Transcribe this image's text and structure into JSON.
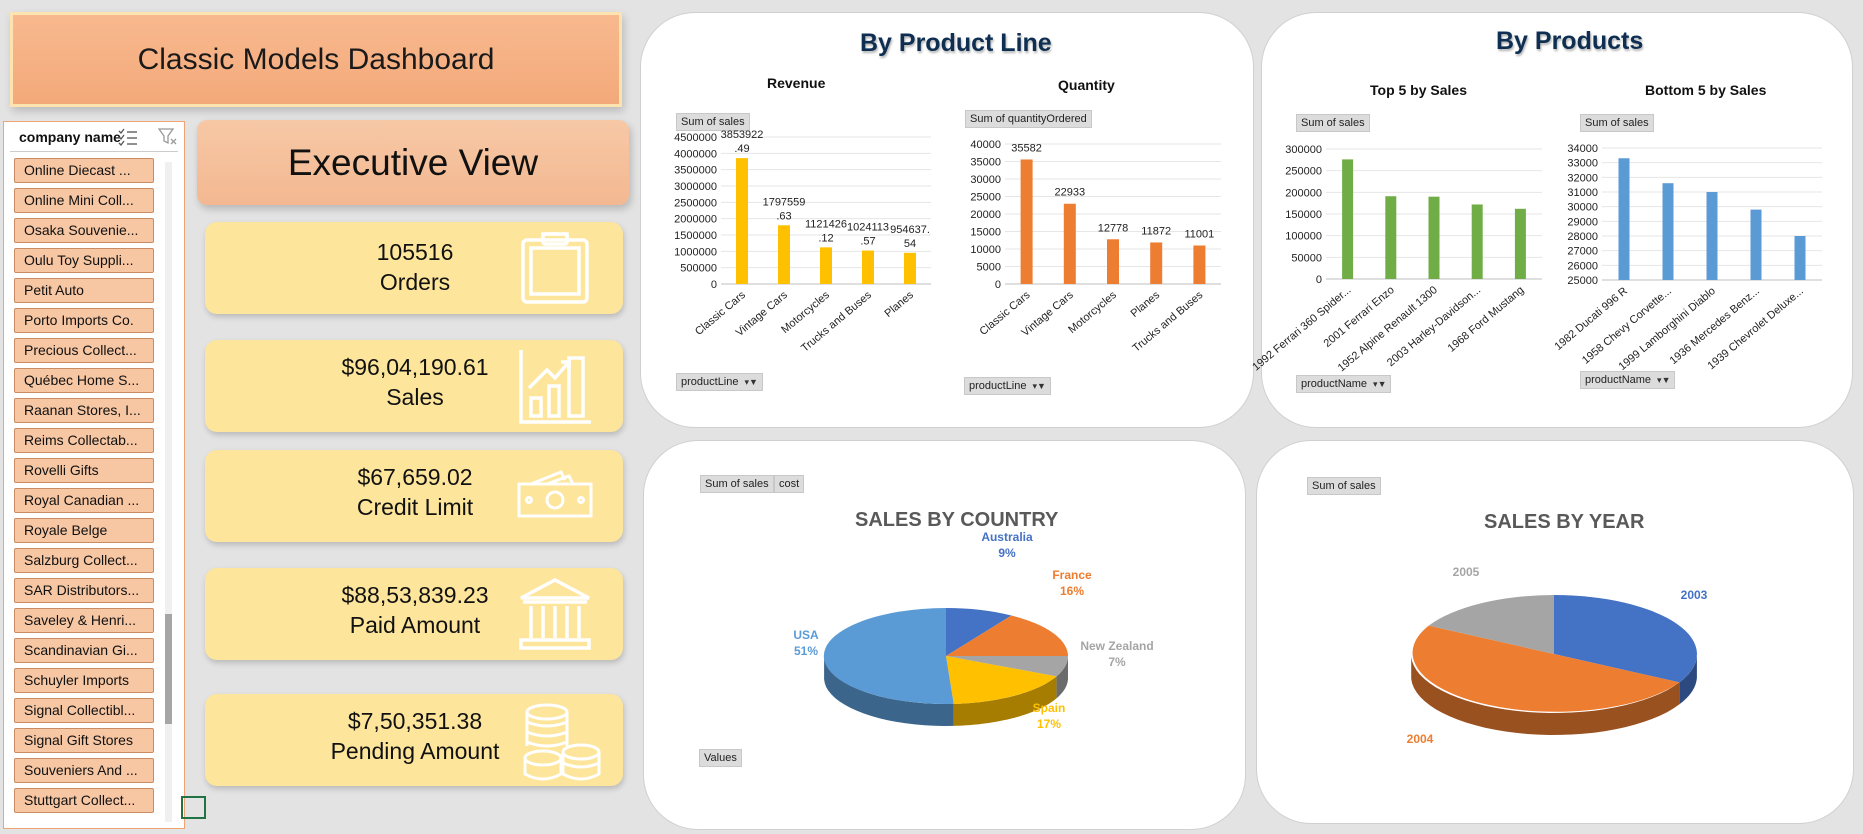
{
  "dashboard": {
    "title": "Classic Models Dashboard",
    "subtitle": "Executive View"
  },
  "slicer": {
    "header": "company name",
    "items": [
      "Online Diecast ...",
      "Online Mini Coll...",
      "Osaka Souvenie...",
      "Oulu Toy Suppli...",
      "Petit Auto",
      "Porto Imports Co.",
      "Precious Collect...",
      "Québec Home S...",
      "Raanan Stores, I...",
      "Reims Collectab...",
      "Rovelli Gifts",
      "Royal Canadian ...",
      "Royale Belge",
      "Salzburg Collect...",
      "SAR Distributors...",
      "Saveley & Henri...",
      "Scandinavian Gi...",
      "Schuyler Imports",
      "Signal Collectibl...",
      "Signal Gift Stores",
      "Souveniers And ...",
      "Stuttgart Collect..."
    ]
  },
  "kpis": [
    {
      "value": "105516",
      "label": "Orders",
      "icon": "clipboard-icon"
    },
    {
      "value": "$96,04,190.61",
      "label": "Sales",
      "icon": "growth-chart-icon"
    },
    {
      "value": "$67,659.02",
      "label": "Credit Limit",
      "icon": "cash-icon"
    },
    {
      "value": "$88,53,839.23",
      "label": "Paid Amount",
      "icon": "bank-icon"
    },
    {
      "value": "$7,50,351.38",
      "label": "Pending Amount",
      "icon": "coins-icon"
    }
  ],
  "colors": {
    "yellow": "#ffc000",
    "orange": "#ed7d31",
    "green": "#70ad47",
    "blue": "#5b9bd5",
    "darkblue": "#4472c4",
    "gray": "#a5a5a5"
  },
  "product_line_panel": {
    "title": "By Product Line",
    "revenue_title": "Revenue",
    "revenue_field": "Sum of sales",
    "quantity_title": "Quantity",
    "quantity_field": "Sum of quantityOrdered",
    "filter": "productLine"
  },
  "products_panel": {
    "title": "By Products",
    "top_title": "Top 5 by Sales",
    "bottom_title": "Bottom 5 by Sales",
    "field": "Sum of sales",
    "filter": "productName"
  },
  "country_panel": {
    "field1": "Sum of sales",
    "field2": "cost",
    "values_btn": "Values",
    "title": "SALES BY COUNTRY"
  },
  "year_panel": {
    "field": "Sum of sales",
    "title": "SALES BY YEAR"
  },
  "chart_data": [
    {
      "type": "bar",
      "title": "Revenue",
      "categories": [
        "Classic Cars",
        "Vintage Cars",
        "Motorcycles",
        "Trucks and Buses",
        "Planes"
      ],
      "values": [
        3853922.49,
        1797559.63,
        1121426.12,
        1024113.57,
        954637.54
      ],
      "labels": [
        [
          "3853922",
          ".49"
        ],
        [
          "1797559",
          ".63"
        ],
        [
          "1121426",
          ".12"
        ],
        [
          "1024113",
          ".57"
        ],
        [
          "954637.",
          "54"
        ]
      ],
      "yticks": [
        "0",
        "500000",
        "1000000",
        "1500000",
        "2000000",
        "2500000",
        "3000000",
        "3500000",
        "4000000",
        "4500000"
      ],
      "ylim": [
        0,
        4500000
      ]
    },
    {
      "type": "bar",
      "title": "Quantity",
      "categories": [
        "Classic Cars",
        "Vintage Cars",
        "Motorcycles",
        "Planes",
        "Trucks and Buses"
      ],
      "values": [
        35582,
        22933,
        12778,
        11872,
        11001
      ],
      "labels": [
        "35582",
        "22933",
        "12778",
        "11872",
        "11001"
      ],
      "yticks": [
        "0",
        "5000",
        "10000",
        "15000",
        "20000",
        "25000",
        "30000",
        "35000",
        "40000"
      ],
      "ylim": [
        0,
        40000
      ]
    },
    {
      "type": "bar",
      "title": "Top 5 by Sales",
      "categories": [
        "1992 Ferrari 360 Spider...",
        "2001 Ferrari Enzo",
        "1952 Alpine Renault 1300",
        "2003 Harley-Davidson...",
        "1968 Ford Mustang"
      ],
      "values": [
        276000,
        191000,
        190000,
        172000,
        162000
      ],
      "yticks": [
        "0",
        "50000",
        "100000",
        "150000",
        "200000",
        "250000",
        "300000"
      ],
      "ylim": [
        0,
        300000
      ]
    },
    {
      "type": "bar",
      "title": "Bottom 5 by Sales",
      "categories": [
        "1982 Ducati 996 R",
        "1958 Chevy Corvette...",
        "1999 Lamborghini Diablo",
        "1936 Mercedes Benz...",
        "1939 Chevrolet Deluxe..."
      ],
      "values": [
        33300,
        31600,
        31000,
        29800,
        28000
      ],
      "yticks": [
        "25000",
        "26000",
        "27000",
        "28000",
        "29000",
        "30000",
        "31000",
        "32000",
        "33000",
        "34000"
      ],
      "ylim": [
        25000,
        34000
      ]
    },
    {
      "type": "pie",
      "title": "SALES BY COUNTRY",
      "slices": [
        {
          "name": "Australia",
          "pct": "9%",
          "value": 9,
          "color": "#4472c4"
        },
        {
          "name": "France",
          "pct": "16%",
          "value": 16,
          "color": "#ed7d31"
        },
        {
          "name": "New Zealand",
          "pct": "7%",
          "value": 7,
          "color": "#a5a5a5"
        },
        {
          "name": "Spain",
          "pct": "17%",
          "value": 17,
          "color": "#ffc000"
        },
        {
          "name": "USA",
          "pct": "51%",
          "value": 51,
          "color": "#5b9bd5"
        }
      ]
    },
    {
      "type": "pie",
      "title": "SALES BY YEAR",
      "slices": [
        {
          "name": "2003",
          "value": 33,
          "color": "#4472c4"
        },
        {
          "name": "2004",
          "value": 50,
          "color": "#ed7d31"
        },
        {
          "name": "2005",
          "value": 17,
          "color": "#a5a5a5"
        }
      ]
    }
  ]
}
